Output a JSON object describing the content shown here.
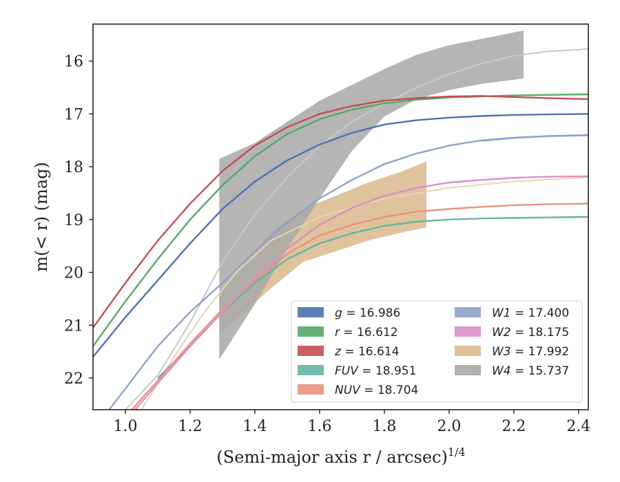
{
  "chart_data": {
    "type": "line",
    "xlabel": "(Semi-major axis r / arcsec)",
    "xlabel_superscript": "1/4",
    "ylabel": "m(< r) (mag)",
    "xlim": [
      0.9,
      2.43
    ],
    "ylim": [
      22.6,
      15.3
    ],
    "y_inverted": true,
    "xticks": [
      "1.0",
      "1.2",
      "1.4",
      "1.6",
      "1.8",
      "2.0",
      "2.2",
      "2.4"
    ],
    "yticks": [
      "16",
      "17",
      "18",
      "19",
      "20",
      "21",
      "22"
    ],
    "grid": false,
    "legend_position": "lower-right",
    "series": [
      {
        "name": "g",
        "value": "16.986",
        "color": "#4c72b0",
        "kind": "line",
        "x": [
          0.9,
          1.0,
          1.1,
          1.2,
          1.3,
          1.4,
          1.5,
          1.6,
          1.7,
          1.8,
          1.9,
          2.0,
          2.1,
          2.2,
          2.3,
          2.43
        ],
        "y": [
          21.6,
          20.85,
          20.15,
          19.45,
          18.8,
          18.28,
          17.88,
          17.58,
          17.36,
          17.2,
          17.12,
          17.07,
          17.04,
          17.02,
          17.01,
          17.0
        ]
      },
      {
        "name": "r",
        "value": "16.612",
        "color": "#55a868",
        "kind": "line",
        "x": [
          0.9,
          1.0,
          1.1,
          1.2,
          1.3,
          1.4,
          1.5,
          1.6,
          1.7,
          1.8,
          1.9,
          2.0,
          2.1,
          2.2,
          2.3,
          2.43
        ],
        "y": [
          21.4,
          20.55,
          19.75,
          19.0,
          18.35,
          17.8,
          17.38,
          17.1,
          16.92,
          16.8,
          16.73,
          16.69,
          16.67,
          16.65,
          16.64,
          16.63
        ]
      },
      {
        "name": "z",
        "value": "16.614",
        "color": "#c44e52",
        "kind": "line",
        "x": [
          0.9,
          1.0,
          1.1,
          1.2,
          1.3,
          1.4,
          1.5,
          1.6,
          1.7,
          1.8,
          1.9,
          2.0,
          2.1,
          2.2,
          2.3,
          2.43
        ],
        "y": [
          21.05,
          20.2,
          19.4,
          18.7,
          18.08,
          17.6,
          17.25,
          17.0,
          16.85,
          16.75,
          16.7,
          16.67,
          16.66,
          16.68,
          16.7,
          16.72
        ]
      },
      {
        "name": "FUV",
        "value": "18.951",
        "color": "#64b5a0",
        "kind": "line",
        "x": [
          1.1,
          1.2,
          1.3,
          1.4,
          1.5,
          1.6,
          1.7,
          1.8,
          1.9,
          2.0,
          2.1,
          2.2,
          2.3,
          2.43
        ],
        "y": [
          22.0,
          21.4,
          20.75,
          20.2,
          19.75,
          19.45,
          19.26,
          19.12,
          19.04,
          19.0,
          18.98,
          18.97,
          18.96,
          18.95
        ]
      },
      {
        "name": "NUV",
        "value": "18.704",
        "color": "#e8927c",
        "kind": "line",
        "x": [
          1.02,
          1.1,
          1.2,
          1.3,
          1.4,
          1.5,
          1.6,
          1.7,
          1.8,
          1.9,
          2.0,
          2.1,
          2.2,
          2.3,
          2.43
        ],
        "y": [
          22.6,
          22.05,
          21.35,
          20.7,
          20.15,
          19.65,
          19.3,
          19.1,
          18.95,
          18.85,
          18.8,
          18.76,
          18.73,
          18.71,
          18.7
        ]
      },
      {
        "name": "W1",
        "value": "17.400",
        "color": "#8fa2c8",
        "kind": "line",
        "x": [
          0.95,
          1.0,
          1.1,
          1.2,
          1.3,
          1.4,
          1.5,
          1.6,
          1.7,
          1.8,
          1.9,
          2.0,
          2.1,
          2.2,
          2.3,
          2.43
        ],
        "y": [
          22.6,
          22.2,
          21.4,
          20.75,
          20.2,
          19.6,
          19.05,
          18.6,
          18.25,
          17.95,
          17.75,
          17.6,
          17.5,
          17.45,
          17.42,
          17.4
        ]
      },
      {
        "name": "W2",
        "value": "18.175",
        "color": "#dd8fc6",
        "kind": "line",
        "x": [
          1.03,
          1.1,
          1.2,
          1.3,
          1.4,
          1.5,
          1.6,
          1.7,
          1.8,
          1.9,
          2.0,
          2.1,
          2.2,
          2.3,
          2.43
        ],
        "y": [
          22.6,
          22.1,
          21.4,
          20.75,
          20.1,
          19.55,
          19.1,
          18.78,
          18.55,
          18.4,
          18.3,
          18.25,
          18.21,
          18.19,
          18.18
        ]
      },
      {
        "name": "W3",
        "value": "17.992",
        "color": "#d9b98c",
        "kind": "band",
        "x": [
          1.29,
          1.35,
          1.45,
          1.55,
          1.65,
          1.75,
          1.85,
          1.93
        ],
        "y_upper": [
          20.45,
          19.95,
          19.25,
          18.8,
          18.55,
          18.3,
          18.1,
          17.9
        ],
        "y_lower": [
          21.15,
          20.85,
          20.3,
          19.8,
          19.6,
          19.4,
          19.25,
          19.15
        ]
      },
      {
        "name": "W4",
        "value": "15.737",
        "color": "#a8a8a8",
        "kind": "band",
        "x": [
          1.29,
          1.4,
          1.5,
          1.6,
          1.7,
          1.8,
          1.9,
          2.0,
          2.1,
          2.23
        ],
        "y_upper": [
          17.85,
          17.55,
          17.15,
          16.75,
          16.45,
          16.15,
          15.88,
          15.7,
          15.58,
          15.42
        ],
        "y_lower": [
          21.65,
          20.6,
          19.55,
          18.6,
          17.7,
          17.05,
          16.72,
          16.55,
          16.43,
          16.33
        ]
      }
    ],
    "light_extrapolations": [
      {
        "name": "W4",
        "color": "#c8c8c8",
        "x": [
          1.0,
          1.1,
          1.2,
          1.3,
          1.4,
          1.5,
          1.6,
          1.7,
          1.8,
          1.9,
          2.0,
          2.1,
          2.2,
          2.3,
          2.43
        ],
        "y": [
          22.6,
          21.95,
          20.95,
          19.8,
          18.9,
          18.2,
          17.6,
          17.15,
          16.8,
          16.5,
          16.25,
          16.05,
          15.9,
          15.82,
          15.77
        ]
      },
      {
        "name": "W3",
        "color": "#e6d4b5",
        "x": [
          1.05,
          1.15,
          1.25,
          1.35,
          1.45,
          1.6,
          1.8,
          2.0,
          2.2,
          2.43
        ],
        "y": [
          22.6,
          21.6,
          20.7,
          19.95,
          19.4,
          18.95,
          18.6,
          18.4,
          18.28,
          18.2
        ]
      },
      {
        "name": "W1",
        "color": "#b9c3da",
        "x": [
          2.1,
          2.2,
          2.3,
          2.43
        ],
        "y": [
          17.52,
          17.46,
          17.43,
          17.41
        ]
      },
      {
        "name": "W2",
        "color": "#ecc0dc",
        "x": [
          2.02,
          2.1,
          2.2,
          2.3,
          2.43
        ],
        "y": [
          18.3,
          18.25,
          18.21,
          18.19,
          18.18
        ]
      }
    ]
  }
}
